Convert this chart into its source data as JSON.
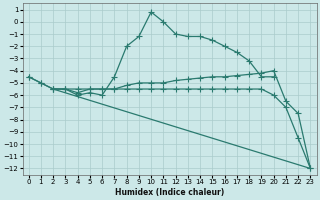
{
  "title": "",
  "xlabel": "Humidex (Indice chaleur)",
  "xlim": [
    -0.5,
    23.5
  ],
  "ylim": [
    -12.5,
    1.5
  ],
  "yticks": [
    1,
    0,
    -1,
    -2,
    -3,
    -4,
    -5,
    -6,
    -7,
    -8,
    -9,
    -10,
    -11,
    -12
  ],
  "xticks": [
    0,
    1,
    2,
    3,
    4,
    5,
    6,
    7,
    8,
    9,
    10,
    11,
    12,
    13,
    14,
    15,
    16,
    17,
    18,
    19,
    20,
    21,
    22,
    23
  ],
  "bg_color": "#cce8e8",
  "grid_color": "#aacccc",
  "line_color": "#2a7a6f",
  "line_width": 0.9,
  "marker": "+",
  "marker_size": 4,
  "marker_lw": 0.8,
  "curves": [
    {
      "x": [
        0,
        1,
        2,
        3,
        4,
        5,
        6,
        7,
        8,
        9,
        10,
        11,
        12,
        13,
        14,
        15,
        16,
        17,
        18,
        19,
        20
      ],
      "y": [
        -4.5,
        -5.0,
        -5.5,
        -5.5,
        -6.0,
        -5.8,
        -6.0,
        -4.5,
        -2.0,
        -1.2,
        0.8,
        0.0,
        -1.0,
        -1.2,
        -1.2,
        -1.5,
        -2.0,
        -2.5,
        -3.2,
        -4.5,
        -4.5
      ]
    },
    {
      "x": [
        0,
        1,
        2,
        3,
        4,
        5,
        6,
        7,
        8,
        9,
        10,
        11,
        12,
        13,
        14,
        15,
        16,
        17,
        18,
        19,
        20,
        21,
        22,
        23
      ],
      "y": [
        -4.5,
        -5.0,
        -5.5,
        -5.5,
        -5.8,
        -5.5,
        -5.5,
        -5.5,
        -5.2,
        -5.0,
        -5.0,
        -5.0,
        -4.8,
        -4.7,
        -4.6,
        -4.5,
        -4.5,
        -4.4,
        -4.3,
        -4.2,
        -4.0,
        -6.5,
        -7.5,
        -12.0
      ]
    },
    {
      "x": [
        2,
        3,
        4,
        5,
        6,
        7,
        8,
        9,
        10,
        11,
        12,
        13,
        14,
        15,
        16,
        17,
        18,
        19,
        20,
        21,
        22,
        23
      ],
      "y": [
        -5.5,
        -5.5,
        -5.5,
        -5.5,
        -5.5,
        -5.5,
        -5.5,
        -5.5,
        -5.5,
        -5.5,
        -5.5,
        -5.5,
        -5.5,
        -5.5,
        -5.5,
        -5.5,
        -5.5,
        -5.5,
        -6.0,
        -7.0,
        -9.5,
        -12.0
      ]
    },
    {
      "x": [
        2,
        23
      ],
      "y": [
        -5.5,
        -12.0
      ]
    }
  ]
}
